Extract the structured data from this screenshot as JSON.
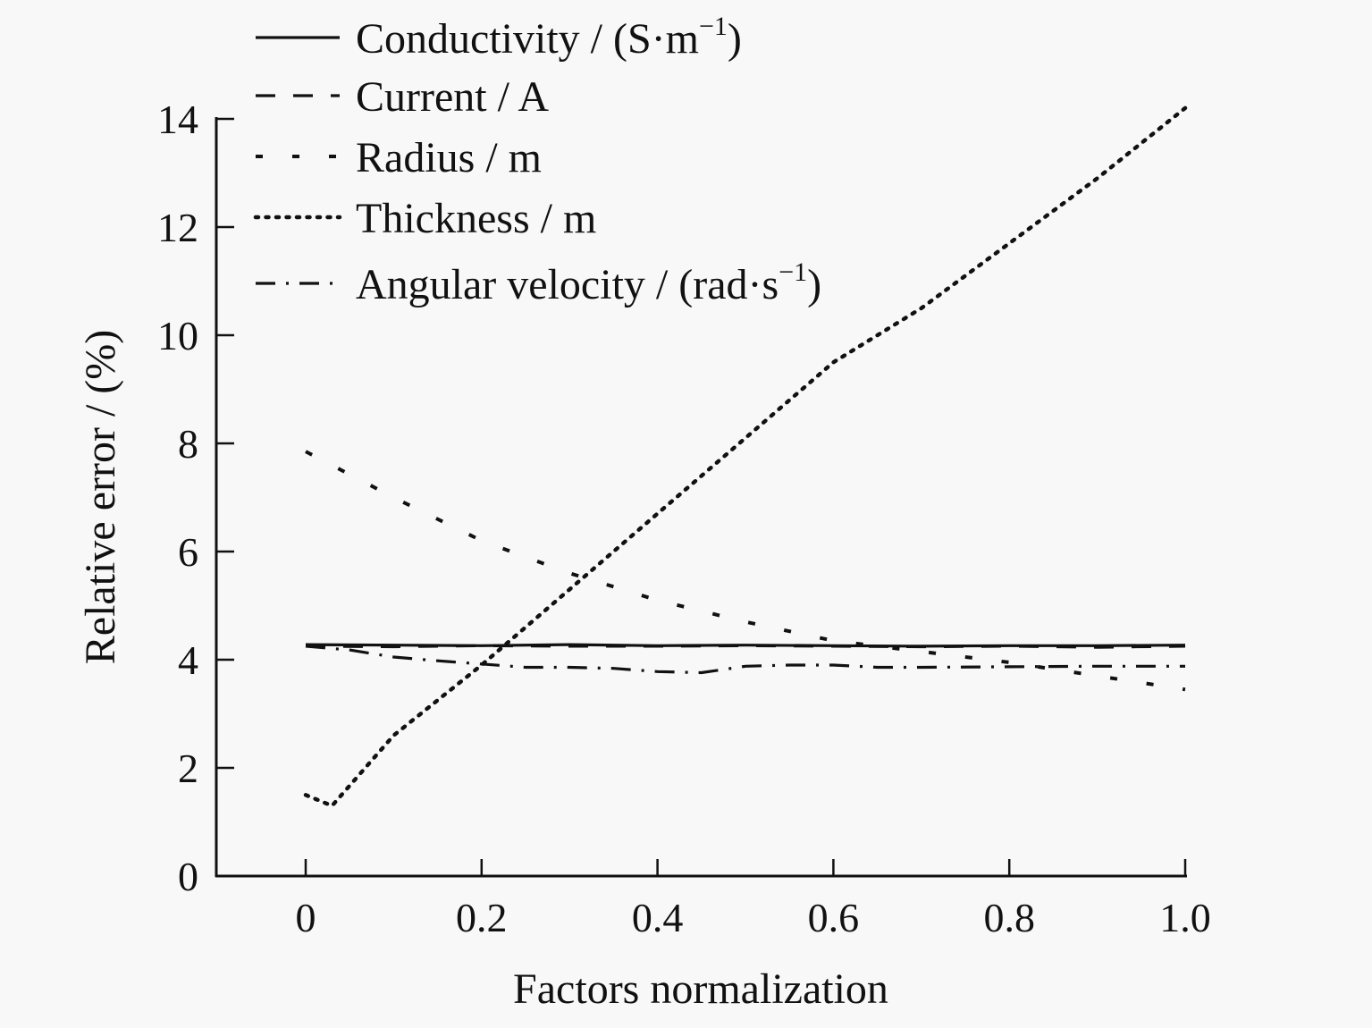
{
  "chart_data": {
    "type": "line",
    "title": "",
    "xlabel": "Factors normalization",
    "ylabel": "Relative error / (%)",
    "xlim": [
      -0.1,
      1.0
    ],
    "ylim": [
      0,
      14
    ],
    "x_ticks": [
      0,
      0.2,
      0.4,
      0.6,
      0.8,
      1.0
    ],
    "x_tick_labels": [
      "0",
      "0.2",
      "0.4",
      "0.6",
      "0.8",
      "1.0"
    ],
    "y_ticks": [
      0,
      2,
      4,
      6,
      8,
      10,
      12,
      14
    ],
    "y_tick_labels": [
      "0",
      "2",
      "4",
      "6",
      "8",
      "10",
      "12",
      "14"
    ],
    "grid": false,
    "legend_position": "top-left",
    "series": [
      {
        "name": "Conductivity / (S·m",
        "name_sup": "−1",
        "name_suffix": ")",
        "style": "solid",
        "x": [
          0,
          0.1,
          0.2,
          0.3,
          0.4,
          0.5,
          0.6,
          0.7,
          0.8,
          0.9,
          1.0
        ],
        "values": [
          4.28,
          4.27,
          4.26,
          4.28,
          4.26,
          4.27,
          4.26,
          4.25,
          4.26,
          4.26,
          4.27
        ]
      },
      {
        "name": "Current / A",
        "name_sup": "",
        "name_suffix": "",
        "style": "dashed",
        "x": [
          0,
          0.1,
          0.2,
          0.3,
          0.4,
          0.5,
          0.6,
          0.7,
          0.8,
          0.9,
          1.0
        ],
        "values": [
          4.25,
          4.24,
          4.26,
          4.25,
          4.25,
          4.26,
          4.25,
          4.24,
          4.25,
          4.23,
          4.25
        ]
      },
      {
        "name": "Radius / m",
        "name_sup": "",
        "name_suffix": "",
        "style": "sparse-dash",
        "x": [
          0,
          0.1,
          0.2,
          0.3,
          0.4,
          0.5,
          0.6,
          0.7,
          0.8,
          0.9,
          1.0
        ],
        "values": [
          7.85,
          7.0,
          6.2,
          5.6,
          5.1,
          4.7,
          4.35,
          4.15,
          3.95,
          3.7,
          3.45
        ]
      },
      {
        "name": "Thickness / m",
        "name_sup": "",
        "name_suffix": "",
        "style": "dotted",
        "x": [
          0,
          0.03,
          0.1,
          0.2,
          0.3,
          0.4,
          0.5,
          0.6,
          0.7,
          0.8,
          0.9,
          1.0
        ],
        "values": [
          1.5,
          1.3,
          2.6,
          3.9,
          5.3,
          6.7,
          8.1,
          9.5,
          10.5,
          11.7,
          12.9,
          14.2
        ]
      },
      {
        "name": "Angular velocity / (rad·s",
        "name_sup": "−1",
        "name_suffix": ")",
        "style": "dash-dot",
        "x": [
          0,
          0.05,
          0.1,
          0.15,
          0.2,
          0.25,
          0.3,
          0.35,
          0.4,
          0.45,
          0.5,
          0.55,
          0.6,
          0.65,
          0.7,
          0.8,
          0.9,
          1.0
        ],
        "values": [
          4.25,
          4.18,
          4.05,
          3.98,
          3.92,
          3.86,
          3.86,
          3.84,
          3.78,
          3.76,
          3.88,
          3.9,
          3.9,
          3.86,
          3.86,
          3.87,
          3.88,
          3.88
        ]
      }
    ]
  }
}
